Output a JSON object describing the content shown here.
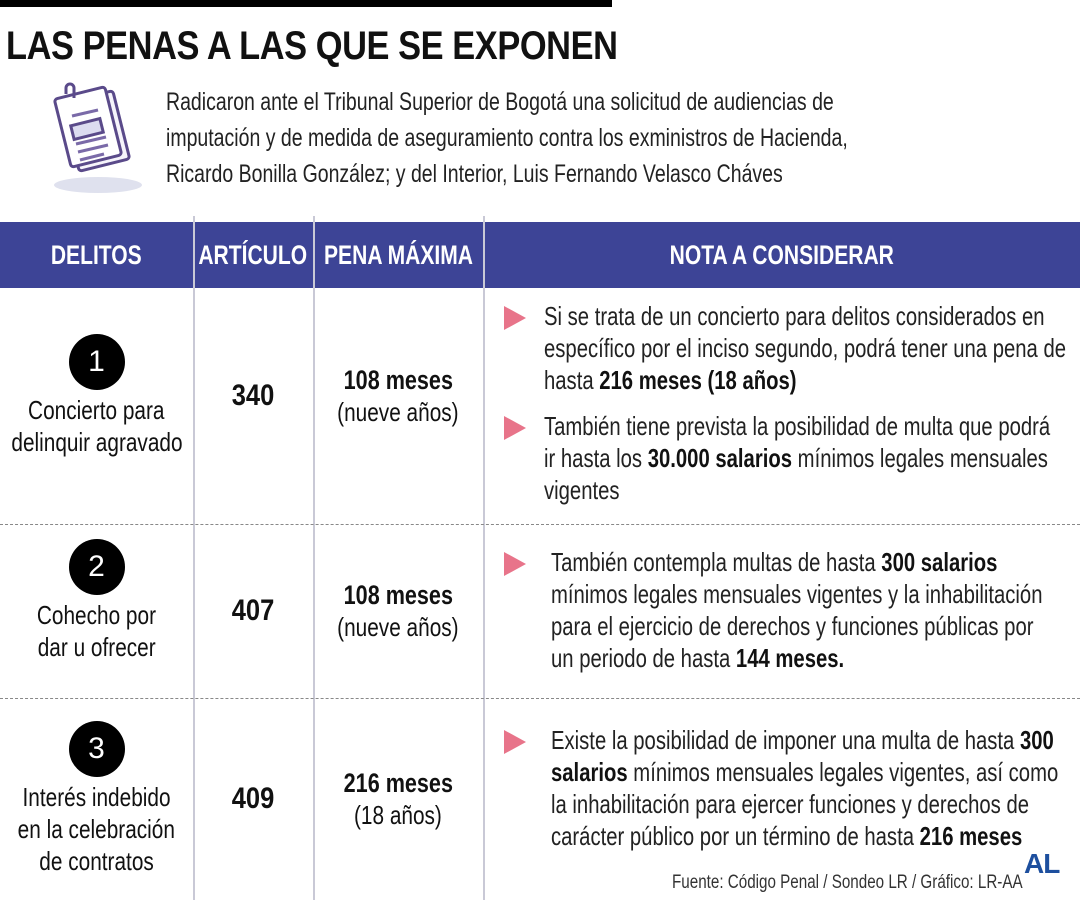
{
  "title": "LAS PENAS A LAS QUE SE EXPONEN",
  "intro": [
    "Radicaron ante el Tribunal Superior de Bogotá una solicitud de audiencias de",
    "imputación y de medida de aseguramiento contra los exministros de Hacienda,",
    "Ricardo Bonilla González; y del Interior, Luis Fernando Velasco Cháves"
  ],
  "headers": [
    "DELITOS",
    "ARTÍCULO",
    "PENA MÁXIMA",
    "NOTA A CONSIDERAR"
  ],
  "rows": [
    {
      "num": "1",
      "delito": [
        "Concierto para",
        "delinquir agravado"
      ],
      "articulo": "340",
      "pena": "108 meses",
      "pena_sub": "(nueve años)",
      "notes": [
        [
          [
            {
              "t": "Si se trata de un concierto para delitos considerados en"
            }
          ],
          [
            {
              "t": "específico por el inciso segundo, podrá tener una pena de"
            }
          ],
          [
            {
              "t": "hasta "
            },
            {
              "t": "216 meses (18 años)",
              "b": true
            }
          ]
        ],
        [
          [
            {
              "t": "También tiene prevista la posibilidad de multa que podrá"
            }
          ],
          [
            {
              "t": "ir hasta los "
            },
            {
              "t": "30.000 salarios",
              "b": true
            },
            {
              "t": " mínimos legales mensuales"
            }
          ],
          [
            {
              "t": "vigentes"
            }
          ]
        ]
      ]
    },
    {
      "num": "2",
      "delito": [
        "Cohecho por",
        "dar u ofrecer"
      ],
      "articulo": "407",
      "pena": "108 meses",
      "pena_sub": "(nueve años)",
      "notes": [
        [
          [
            {
              "t": "También contempla multas de hasta "
            },
            {
              "t": "300 salarios",
              "b": true
            }
          ],
          [
            {
              "t": "mínimos legales mensuales vigentes y la inhabilitación"
            }
          ],
          [
            {
              "t": "para el ejercicio de derechos y funciones públicas por"
            }
          ],
          [
            {
              "t": "un periodo de hasta "
            },
            {
              "t": "144 meses.",
              "b": true
            }
          ]
        ]
      ]
    },
    {
      "num": "3",
      "delito": [
        "Interés indebido",
        "en la celebración",
        "de contratos"
      ],
      "articulo": "409",
      "pena": "216 meses",
      "pena_sub": "(18 años)",
      "notes": [
        [
          [
            {
              "t": "Existe la posibilidad de imponer una multa de hasta "
            },
            {
              "t": "300",
              "b": true
            }
          ],
          [
            {
              "t": "salarios",
              "b": true
            },
            {
              "t": " mínimos mensuales legales vigentes, así como"
            }
          ],
          [
            {
              "t": "la inhabilitación para ejercer funciones y derechos de"
            }
          ],
          [
            {
              "t": "carácter público por un término de hasta "
            },
            {
              "t": "216 meses",
              "b": true
            }
          ]
        ]
      ]
    }
  ],
  "source": "Fuente: Código Penal / Sondeo LR / Gráfico: LR-AA",
  "logo": "AL",
  "colors": {
    "header": "#3d4496",
    "bullet": "#e8748a",
    "logo": "#1d4f9e"
  },
  "icons": {
    "intro": "document-icon",
    "bullet": "triangle-right-icon"
  }
}
